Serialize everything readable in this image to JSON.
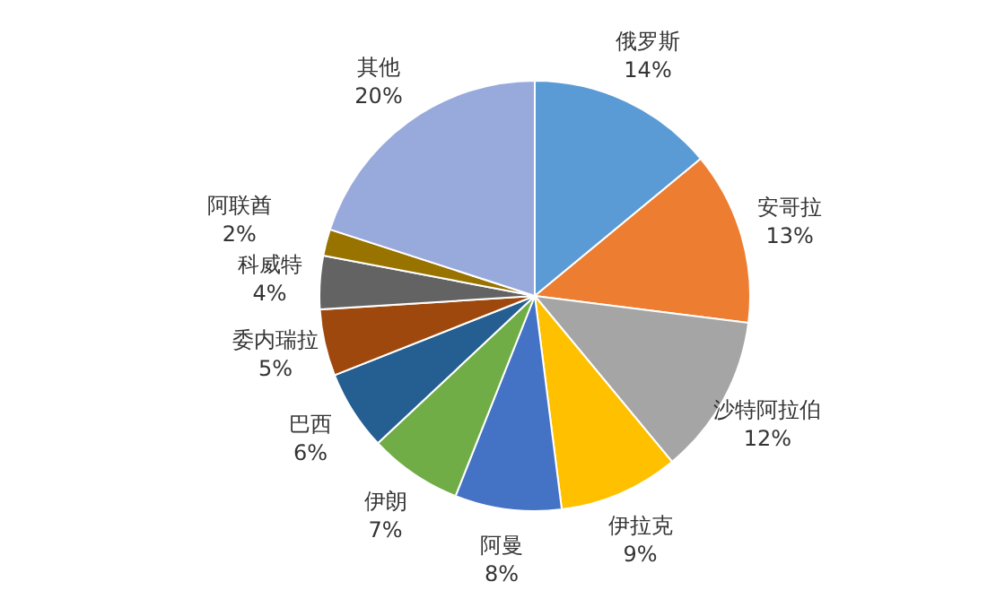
{
  "chart_data": {
    "type": "pie",
    "categories": [
      "俄罗斯",
      "安哥拉",
      "沙特阿拉伯",
      "伊拉克",
      "阿曼",
      "伊朗",
      "巴西",
      "委内瑞拉",
      "科威特",
      "阿联酋",
      "其他"
    ],
    "values": [
      14,
      13,
      12,
      9,
      8,
      7,
      6,
      5,
      4,
      2,
      20
    ],
    "colors": [
      "#5b9bd5",
      "#ed7d31",
      "#a5a5a5",
      "#ffc000",
      "#4472c4",
      "#70ad47",
      "#255e91",
      "#9e480e",
      "#636363",
      "#997300",
      "#98a9dc"
    ],
    "value_labels": [
      "14%",
      "13%",
      "12%",
      "9%",
      "8%",
      "7%",
      "6%",
      "5%",
      "4%",
      "2%",
      "20%"
    ]
  }
}
